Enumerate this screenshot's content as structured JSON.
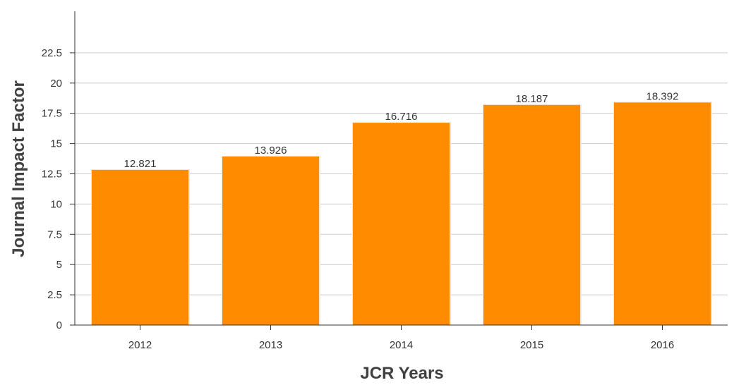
{
  "chart_data": {
    "type": "bar",
    "xlabel": "JCR Years",
    "ylabel": "Journal Impact Factor",
    "categories": [
      "2012",
      "2013",
      "2014",
      "2015",
      "2016"
    ],
    "values": [
      12.821,
      13.926,
      16.716,
      18.187,
      18.392
    ],
    "value_labels": [
      "12.821",
      "13.926",
      "16.716",
      "18.187",
      "18.392"
    ],
    "y_ticks": [
      0,
      2.5,
      5,
      7.5,
      10,
      12.5,
      15,
      17.5,
      20,
      22.5
    ],
    "y_tick_labels": [
      "0",
      "2.5",
      "5",
      "7.5",
      "10",
      "12.5",
      "15",
      "17.5",
      "20",
      "22.5"
    ],
    "ylim": [
      0,
      25
    ],
    "grid": true,
    "legend": "none",
    "bar_color": "#ff8c00"
  }
}
